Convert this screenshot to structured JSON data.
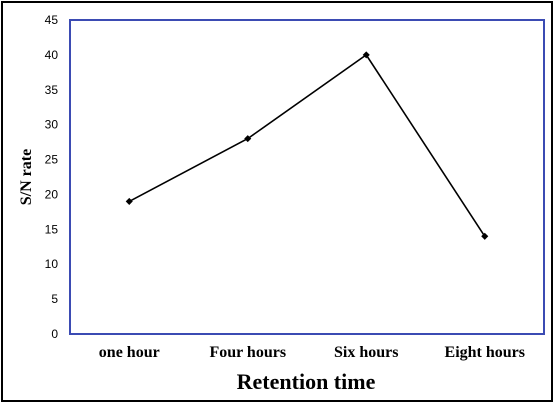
{
  "chart_data": {
    "type": "line",
    "categories": [
      "one hour",
      "Four hours",
      "Six hours",
      "Eight hours"
    ],
    "series": [
      {
        "values": [
          19,
          28,
          40,
          14
        ]
      }
    ],
    "xlabel": "Retention time",
    "ylabel": "S/N rate",
    "ylim": [
      0,
      45
    ],
    "yticks": [
      0,
      5,
      10,
      15,
      20,
      25,
      30,
      35,
      40,
      45
    ],
    "grid": false,
    "colors": {
      "line": "#000000",
      "plot_border": "#3b4bb3",
      "frame": "#000000"
    }
  }
}
